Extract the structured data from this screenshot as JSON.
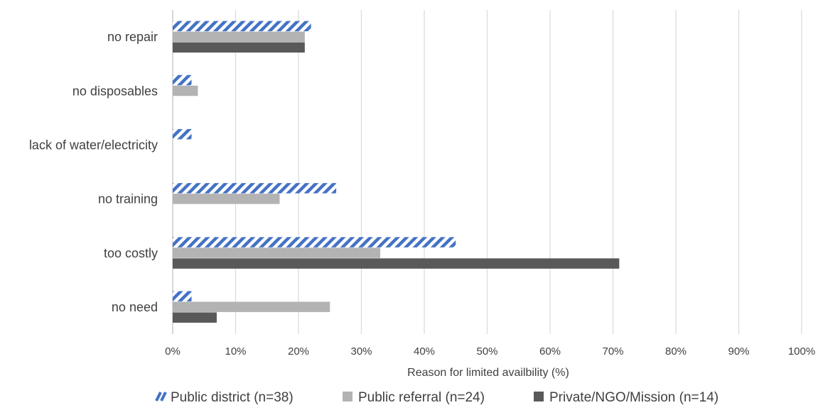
{
  "chart_data": {
    "type": "bar",
    "orientation": "horizontal",
    "categories": [
      "no repair",
      "no disposables",
      "lack of water/electricity",
      "no training",
      "too costly",
      "no need"
    ],
    "series": [
      {
        "name": "Public district (n=38)",
        "values": [
          22,
          3,
          3,
          26,
          45,
          3
        ],
        "color": "#4472c4",
        "pattern": "diagonal-hatch"
      },
      {
        "name": "Public referral (n=24)",
        "values": [
          21,
          4,
          0,
          17,
          33,
          25
        ],
        "color": "#b3b3b3",
        "pattern": "solid"
      },
      {
        "name": "Private/NGO/Mission (n=14)",
        "values": [
          21,
          0,
          0,
          0,
          71,
          7
        ],
        "color": "#595959",
        "pattern": "solid"
      }
    ],
    "xlabel": "Reason for limited availbility (%)",
    "ylabel": "",
    "xlim": [
      0,
      100
    ],
    "x_ticks": [
      0,
      10,
      20,
      30,
      40,
      50,
      60,
      70,
      80,
      90,
      100
    ],
    "tick_suffix": "%",
    "grid": "vertical",
    "legend_position": "bottom"
  }
}
